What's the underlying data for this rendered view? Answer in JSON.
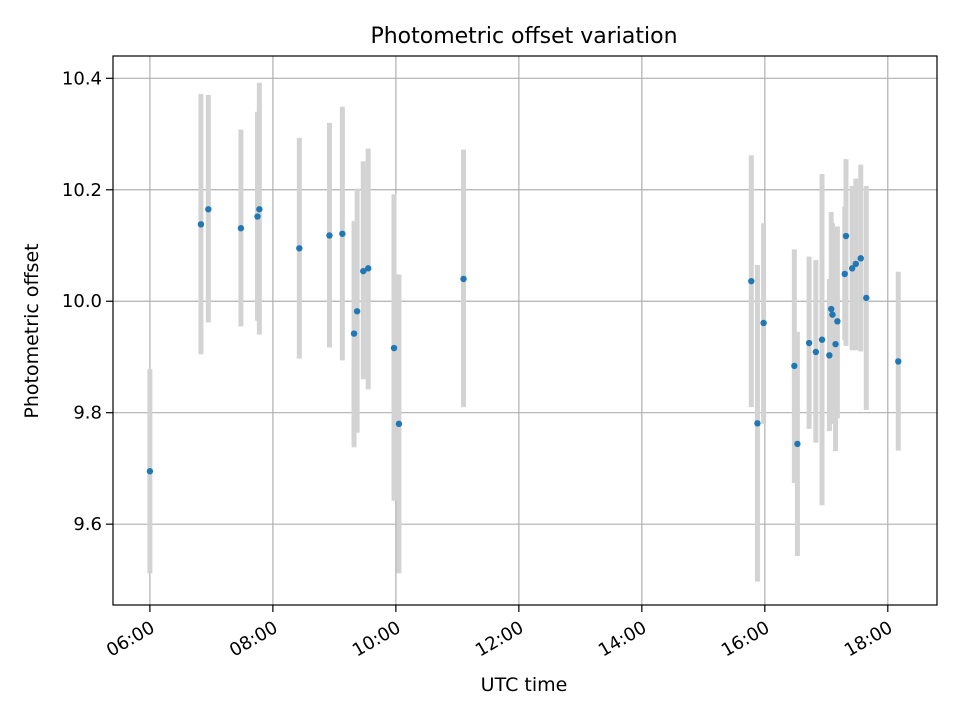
{
  "chart_data": {
    "type": "scatter",
    "title": "Photometric offset variation",
    "xlabel": "UTC time",
    "ylabel": "Photometric offset",
    "x_unit": "hours",
    "xlim": [
      5.4,
      18.8
    ],
    "ylim": [
      9.455,
      10.44
    ],
    "grid": true,
    "x_ticks": [
      {
        "value": 6,
        "label": "06:00"
      },
      {
        "value": 8,
        "label": "08:00"
      },
      {
        "value": 10,
        "label": "10:00"
      },
      {
        "value": 12,
        "label": "12:00"
      },
      {
        "value": 14,
        "label": "14:00"
      },
      {
        "value": 16,
        "label": "16:00"
      },
      {
        "value": 18,
        "label": "18:00"
      }
    ],
    "y_ticks": [
      {
        "value": 9.6,
        "label": "9.6"
      },
      {
        "value": 9.8,
        "label": "9.8"
      },
      {
        "value": 10.0,
        "label": "10.0"
      },
      {
        "value": 10.2,
        "label": "10.2"
      },
      {
        "value": 10.4,
        "label": "10.4"
      }
    ],
    "colors": {
      "point": "#1f77b4",
      "errorbar": "#d3d3d3",
      "grid": "#b0b0b0"
    },
    "points": [
      {
        "x": 6.0,
        "y": 9.695,
        "ylow": 9.512,
        "yhigh": 9.878
      },
      {
        "x": 6.83,
        "y": 10.138,
        "ylow": 9.905,
        "yhigh": 10.372
      },
      {
        "x": 6.95,
        "y": 10.165,
        "ylow": 9.962,
        "yhigh": 10.37
      },
      {
        "x": 7.48,
        "y": 10.131,
        "ylow": 9.955,
        "yhigh": 10.308
      },
      {
        "x": 7.75,
        "y": 10.152,
        "ylow": 9.965,
        "yhigh": 10.34
      },
      {
        "x": 7.78,
        "y": 10.165,
        "ylow": 9.94,
        "yhigh": 10.392
      },
      {
        "x": 8.43,
        "y": 10.095,
        "ylow": 9.897,
        "yhigh": 10.293
      },
      {
        "x": 8.92,
        "y": 10.118,
        "ylow": 9.917,
        "yhigh": 10.32
      },
      {
        "x": 9.13,
        "y": 10.121,
        "ylow": 9.894,
        "yhigh": 10.349
      },
      {
        "x": 9.32,
        "y": 9.942,
        "ylow": 9.738,
        "yhigh": 10.144
      },
      {
        "x": 9.37,
        "y": 9.982,
        "ylow": 9.764,
        "yhigh": 10.202
      },
      {
        "x": 9.47,
        "y": 10.054,
        "ylow": 9.86,
        "yhigh": 10.251
      },
      {
        "x": 9.55,
        "y": 10.059,
        "ylow": 9.842,
        "yhigh": 10.274
      },
      {
        "x": 9.97,
        "y": 9.916,
        "ylow": 9.642,
        "yhigh": 10.192
      },
      {
        "x": 10.05,
        "y": 9.78,
        "ylow": 9.512,
        "yhigh": 10.048
      },
      {
        "x": 11.1,
        "y": 10.04,
        "ylow": 9.81,
        "yhigh": 10.272
      },
      {
        "x": 15.78,
        "y": 10.036,
        "ylow": 9.81,
        "yhigh": 10.262
      },
      {
        "x": 15.88,
        "y": 9.781,
        "ylow": 9.497,
        "yhigh": 10.065
      },
      {
        "x": 15.98,
        "y": 9.961,
        "ylow": 9.78,
        "yhigh": 10.14
      },
      {
        "x": 16.48,
        "y": 9.884,
        "ylow": 9.674,
        "yhigh": 10.093
      },
      {
        "x": 16.53,
        "y": 9.744,
        "ylow": 9.543,
        "yhigh": 9.945
      },
      {
        "x": 16.72,
        "y": 9.925,
        "ylow": 9.771,
        "yhigh": 10.08
      },
      {
        "x": 16.83,
        "y": 9.909,
        "ylow": 9.746,
        "yhigh": 10.074
      },
      {
        "x": 16.93,
        "y": 9.931,
        "ylow": 9.634,
        "yhigh": 10.228
      },
      {
        "x": 17.05,
        "y": 9.903,
        "ylow": 9.767,
        "yhigh": 10.04
      },
      {
        "x": 17.08,
        "y": 9.986,
        "ylow": 9.834,
        "yhigh": 10.16
      },
      {
        "x": 17.1,
        "y": 9.976,
        "ylow": 9.78,
        "yhigh": 10.14
      },
      {
        "x": 17.15,
        "y": 9.923,
        "ylow": 9.731,
        "yhigh": 10.06
      },
      {
        "x": 17.18,
        "y": 9.964,
        "ylow": 9.79,
        "yhigh": 10.134
      },
      {
        "x": 17.32,
        "y": 10.117,
        "ylow": 9.92,
        "yhigh": 10.255
      },
      {
        "x": 17.3,
        "y": 10.049,
        "ylow": 9.93,
        "yhigh": 10.17
      },
      {
        "x": 17.42,
        "y": 10.059,
        "ylow": 9.912,
        "yhigh": 10.207
      },
      {
        "x": 17.48,
        "y": 10.067,
        "ylow": 9.912,
        "yhigh": 10.22
      },
      {
        "x": 17.56,
        "y": 10.077,
        "ylow": 9.91,
        "yhigh": 10.245
      },
      {
        "x": 17.65,
        "y": 10.006,
        "ylow": 9.805,
        "yhigh": 10.207
      },
      {
        "x": 18.17,
        "y": 9.892,
        "ylow": 9.732,
        "yhigh": 10.053
      }
    ]
  }
}
